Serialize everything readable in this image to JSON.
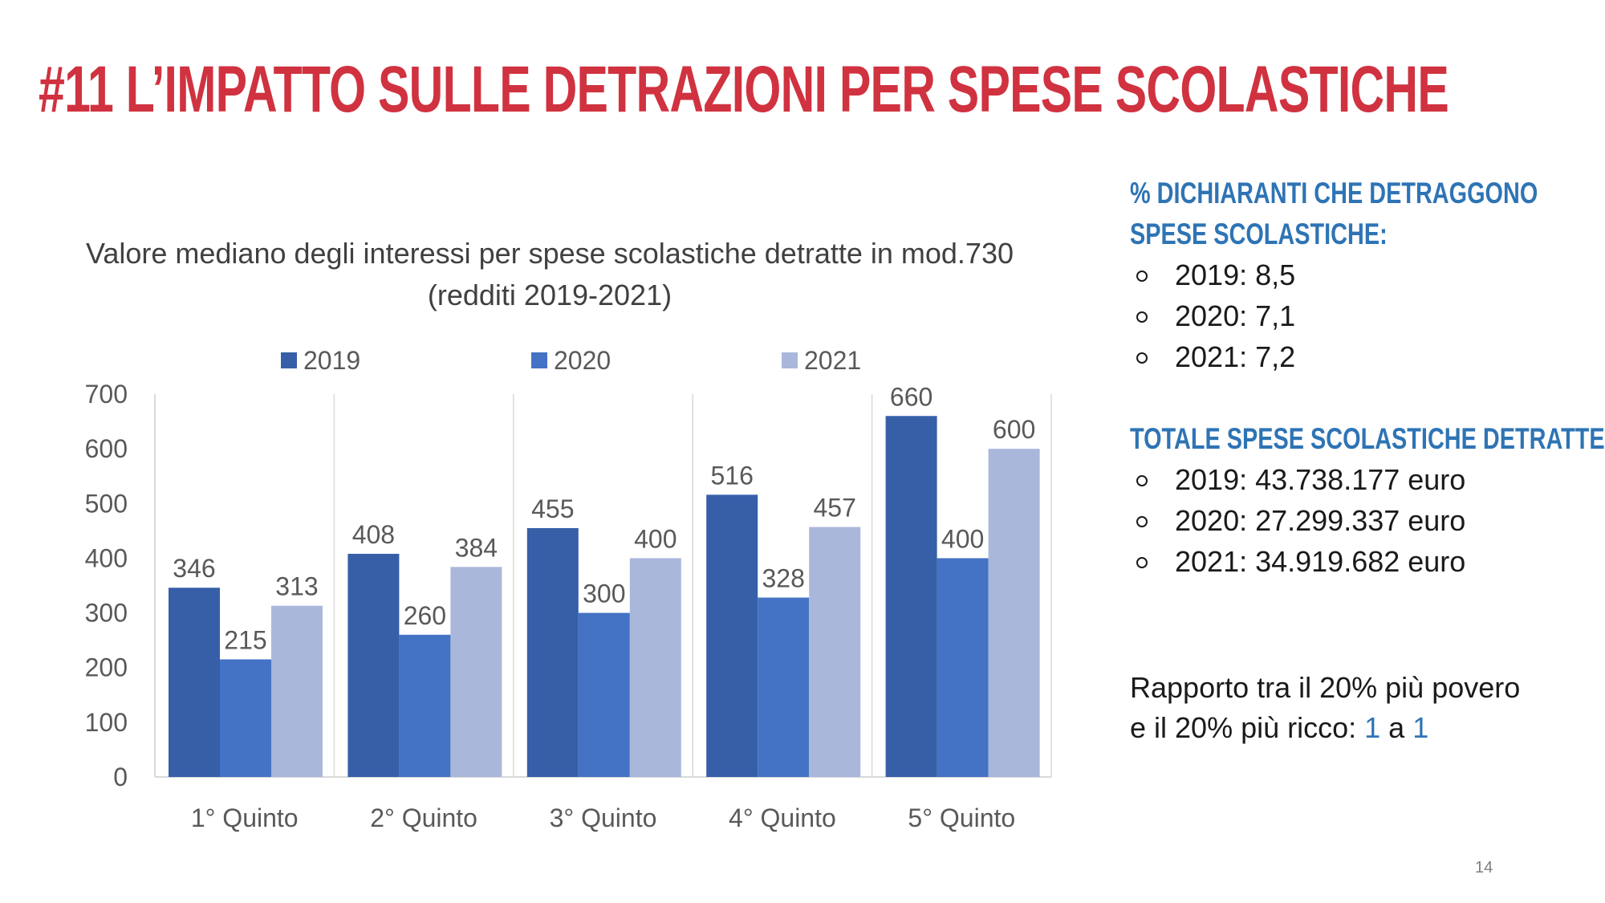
{
  "slide": {
    "title": "#11 L’IMPATTO SULLE DETRAZIONI PER SPESE SCOLASTICHE",
    "page_number": "14"
  },
  "chart_data": {
    "type": "bar",
    "title_line1": "Valore mediano degli interessi per spese scolastiche detratte in mod.730",
    "title_line2": "(redditi 2019-2021)",
    "categories": [
      "1° Quinto",
      "2° Quinto",
      "3° Quinto",
      "4° Quinto",
      "5° Quinto"
    ],
    "series": [
      {
        "name": "2019",
        "color": "#365fa8",
        "values": [
          346,
          408,
          455,
          516,
          660
        ]
      },
      {
        "name": "2020",
        "color": "#4472c4",
        "values": [
          215,
          260,
          300,
          328,
          400
        ]
      },
      {
        "name": "2021",
        "color": "#a9b7db",
        "values": [
          313,
          384,
          400,
          457,
          600
        ]
      }
    ],
    "y_ticks": [
      0,
      100,
      200,
      300,
      400,
      500,
      600,
      700
    ],
    "ylim": [
      0,
      700
    ],
    "grid": false,
    "legend_position": "top",
    "data_labels": true
  },
  "right_panel": {
    "pct_heading_line1": "% DICHIARANTI CHE DETRAGGONO",
    "pct_heading_line2": "SPESE SCOLASTICHE:",
    "pct_items": [
      "2019: 8,5",
      "2020: 7,1",
      "2021: 7,2"
    ],
    "total_heading": "TOTALE SPESE SCOLASTICHE DETRATTE:",
    "total_items": [
      "2019: 43.738.177 euro",
      "2020: 27.299.337 euro",
      "2021: 34.919.682 euro"
    ],
    "ratio_line1": "Rapporto tra il 20% più povero",
    "ratio_line2_prefix": "e il 20% più ricco: ",
    "ratio_a": "1",
    "ratio_mid": " a ",
    "ratio_b": "1"
  },
  "colors": {
    "title_red": "#d03240",
    "heading_blue": "#2e74b5",
    "axis_text": "#595959"
  }
}
